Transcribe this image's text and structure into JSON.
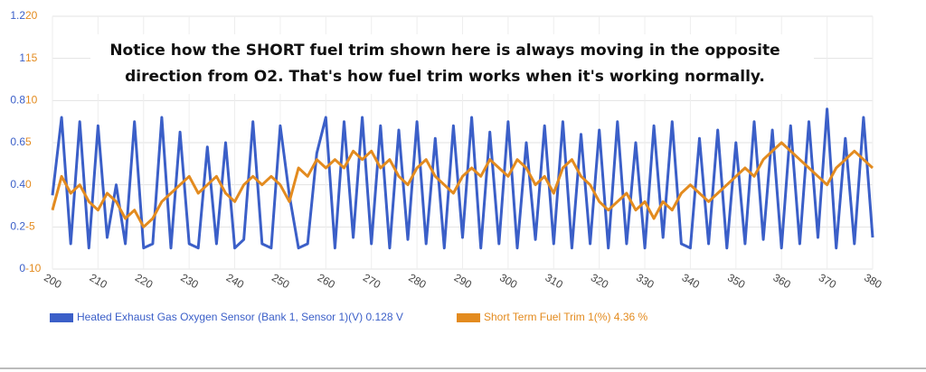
{
  "chart_data": {
    "type": "line",
    "annotation": [
      "Notice how the SHORT fuel trim shown here is always moving in the opposite",
      "direction from O2. That's how fuel trim works when it's working normally."
    ],
    "x": [
      200,
      202,
      204,
      206,
      208,
      210,
      212,
      214,
      216,
      218,
      220,
      222,
      224,
      226,
      228,
      230,
      232,
      234,
      236,
      238,
      240,
      242,
      244,
      246,
      248,
      250,
      252,
      254,
      256,
      258,
      260,
      262,
      264,
      266,
      268,
      270,
      272,
      274,
      276,
      278,
      280,
      282,
      284,
      286,
      288,
      290,
      292,
      294,
      296,
      298,
      300,
      302,
      304,
      306,
      308,
      310,
      312,
      314,
      316,
      318,
      320,
      322,
      324,
      326,
      328,
      330,
      332,
      334,
      336,
      338,
      340,
      342,
      344,
      346,
      348,
      350,
      352,
      354,
      356,
      358,
      360,
      362,
      364,
      366,
      368,
      370,
      372,
      374,
      376,
      378,
      380
    ],
    "series": [
      {
        "name": "Heated Exhaust Gas Oxygen Sensor (Bank 1, Sensor 1)(V) 0.128 V",
        "color": "#3b5fc8",
        "axis": "y",
        "values": [
          0.35,
          0.72,
          0.12,
          0.7,
          0.1,
          0.68,
          0.15,
          0.4,
          0.12,
          0.7,
          0.1,
          0.12,
          0.72,
          0.1,
          0.65,
          0.12,
          0.1,
          0.58,
          0.12,
          0.6,
          0.1,
          0.14,
          0.7,
          0.12,
          0.1,
          0.68,
          0.35,
          0.1,
          0.12,
          0.55,
          0.72,
          0.1,
          0.7,
          0.15,
          0.72,
          0.12,
          0.68,
          0.1,
          0.66,
          0.14,
          0.7,
          0.12,
          0.62,
          0.1,
          0.68,
          0.15,
          0.72,
          0.1,
          0.65,
          0.12,
          0.7,
          0.1,
          0.6,
          0.14,
          0.68,
          0.12,
          0.7,
          0.1,
          0.64,
          0.12,
          0.66,
          0.1,
          0.7,
          0.12,
          0.6,
          0.1,
          0.68,
          0.15,
          0.7,
          0.12,
          0.1,
          0.62,
          0.12,
          0.66,
          0.1,
          0.6,
          0.12,
          0.7,
          0.14,
          0.66,
          0.1,
          0.68,
          0.12,
          0.7,
          0.15,
          0.76,
          0.1,
          0.62,
          0.12,
          0.72,
          0.15
        ]
      },
      {
        "name": "Short Term Fuel Trim 1(%) 4.36 %",
        "color": "#e38b1f",
        "axis": "y2",
        "values": [
          -3,
          1,
          -1,
          0,
          -2,
          -3,
          -1,
          -2,
          -4,
          -3,
          -5,
          -4,
          -2,
          -1,
          0,
          1,
          -1,
          0,
          1,
          -1,
          -2,
          0,
          1,
          0,
          1,
          0,
          -2,
          2,
          1,
          3,
          2,
          3,
          2,
          4,
          3,
          4,
          2,
          3,
          1,
          0,
          2,
          3,
          1,
          0,
          -1,
          1,
          2,
          1,
          3,
          2,
          1,
          3,
          2,
          0,
          1,
          -1,
          2,
          3,
          1,
          0,
          -2,
          -3,
          -2,
          -1,
          -3,
          -2,
          -4,
          -2,
          -3,
          -1,
          0,
          -1,
          -2,
          -1,
          0,
          1,
          2,
          1,
          3,
          4,
          5,
          4,
          3,
          2,
          1,
          0,
          2,
          3,
          4,
          3,
          2
        ]
      }
    ],
    "xlim": [
      200,
      380
    ],
    "xticks": [
      200,
      210,
      220,
      230,
      240,
      250,
      260,
      270,
      280,
      290,
      300,
      310,
      320,
      330,
      340,
      350,
      360,
      370,
      380
    ],
    "ylim": [
      0,
      1.2
    ],
    "yticks": [
      0,
      0.2,
      0.4,
      0.6,
      0.8,
      1,
      1.2
    ],
    "y2lim": [
      -10,
      20
    ],
    "y2ticks": [
      -10,
      -5,
      0,
      5,
      10,
      15,
      20
    ],
    "grid": true
  }
}
